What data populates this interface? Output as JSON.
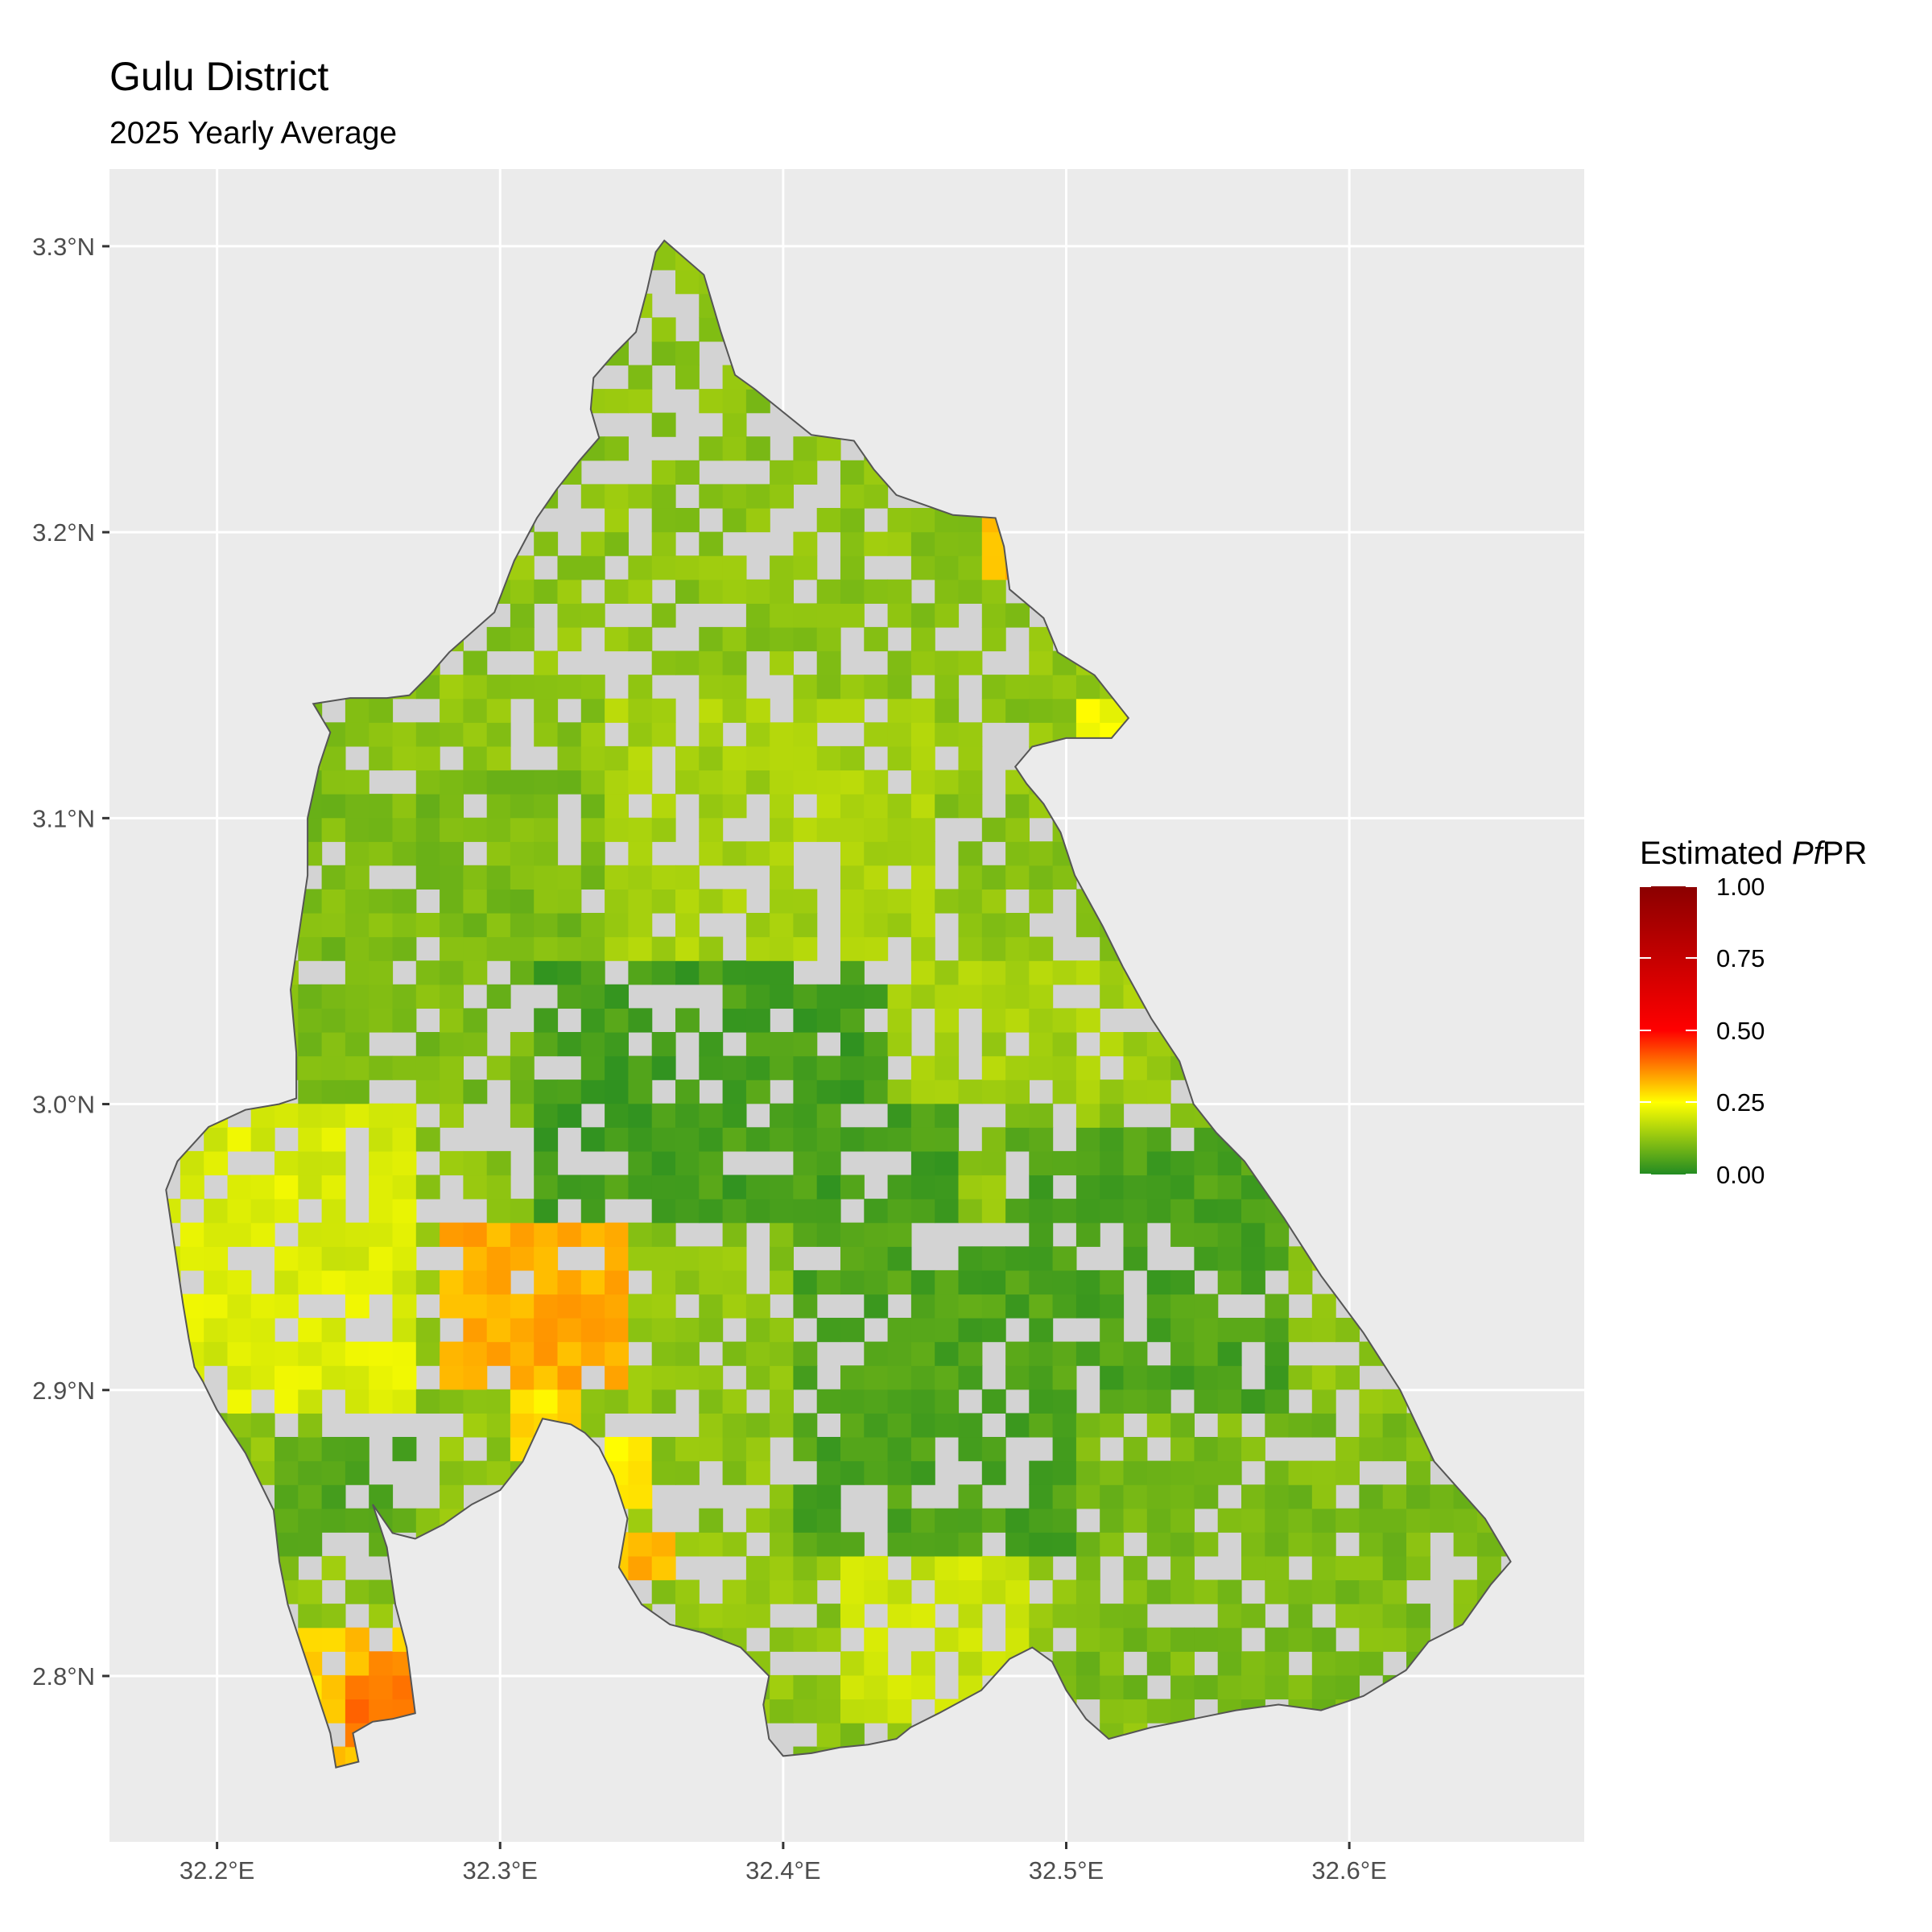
{
  "title": "Gulu District",
  "subtitle": "2025 Yearly Average",
  "legend": {
    "title_prefix": "Estimated ",
    "title_italic": "Pf",
    "title_suffix": "PR",
    "labels": [
      "1.00",
      "0.75",
      "0.50",
      "0.25",
      "0.00"
    ],
    "colors": {
      "low": "#228B22",
      "mid": "#FFFF00",
      "midhigh": "#FF0000",
      "high": "#8B0000"
    },
    "range": [
      0,
      1
    ]
  },
  "colors": {
    "panel": "#EBEBEB",
    "grid": "#FFFFFF",
    "na": "#D3D3D3",
    "outline": "#555555"
  },
  "chart_data": {
    "type": "heatmap",
    "title": "Gulu District",
    "subtitle": "2025 Yearly Average",
    "fill_label": "Estimated PfPR",
    "x_ticks": [
      {
        "value": 32.2,
        "label": "32.2°E"
      },
      {
        "value": 32.3,
        "label": "32.3°E"
      },
      {
        "value": 32.4,
        "label": "32.4°E"
      },
      {
        "value": 32.5,
        "label": "32.5°E"
      },
      {
        "value": 32.6,
        "label": "32.6°E"
      }
    ],
    "y_ticks": [
      {
        "value": 3.3,
        "label": "3.3°N"
      },
      {
        "value": 3.2,
        "label": "3.2°N"
      },
      {
        "value": 3.1,
        "label": "3.1°N"
      },
      {
        "value": 3.0,
        "label": "3.0°N"
      },
      {
        "value": 2.9,
        "label": "2.9°N"
      },
      {
        "value": 2.8,
        "label": "2.8°N"
      }
    ],
    "xlim": [
      32.162,
      32.683
    ],
    "ylim": [
      2.742,
      3.327
    ],
    "grid": true,
    "boundary": [
      [
        32.358,
        3.302
      ],
      [
        32.372,
        3.29
      ],
      [
        32.378,
        3.27
      ],
      [
        32.383,
        3.255
      ],
      [
        32.39,
        3.25
      ],
      [
        32.41,
        3.234
      ],
      [
        32.425,
        3.232
      ],
      [
        32.432,
        3.222
      ],
      [
        32.44,
        3.213
      ],
      [
        32.46,
        3.206
      ],
      [
        32.475,
        3.205
      ],
      [
        32.478,
        3.195
      ],
      [
        32.48,
        3.18
      ],
      [
        32.492,
        3.17
      ],
      [
        32.497,
        3.158
      ],
      [
        32.51,
        3.15
      ],
      [
        32.522,
        3.135
      ],
      [
        32.516,
        3.128
      ],
      [
        32.5,
        3.128
      ],
      [
        32.488,
        3.125
      ],
      [
        32.482,
        3.118
      ],
      [
        32.486,
        3.112
      ],
      [
        32.492,
        3.105
      ],
      [
        32.498,
        3.095
      ],
      [
        32.503,
        3.08
      ],
      [
        32.513,
        3.062
      ],
      [
        32.52,
        3.048
      ],
      [
        32.53,
        3.03
      ],
      [
        32.54,
        3.015
      ],
      [
        32.545,
        3.0
      ],
      [
        32.553,
        2.99
      ],
      [
        32.563,
        2.98
      ],
      [
        32.577,
        2.96
      ],
      [
        32.59,
        2.94
      ],
      [
        32.605,
        2.92
      ],
      [
        32.618,
        2.9
      ],
      [
        32.63,
        2.875
      ],
      [
        32.648,
        2.855
      ],
      [
        32.657,
        2.84
      ],
      [
        32.65,
        2.832
      ],
      [
        32.64,
        2.818
      ],
      [
        32.628,
        2.812
      ],
      [
        32.62,
        2.802
      ],
      [
        32.605,
        2.793
      ],
      [
        32.59,
        2.788
      ],
      [
        32.575,
        2.79
      ],
      [
        32.56,
        2.788
      ],
      [
        32.545,
        2.785
      ],
      [
        32.53,
        2.782
      ],
      [
        32.515,
        2.778
      ],
      [
        32.507,
        2.785
      ],
      [
        32.5,
        2.795
      ],
      [
        32.495,
        2.805
      ],
      [
        32.488,
        2.81
      ],
      [
        32.48,
        2.806
      ],
      [
        32.47,
        2.795
      ],
      [
        32.455,
        2.787
      ],
      [
        32.445,
        2.782
      ],
      [
        32.44,
        2.778
      ],
      [
        32.43,
        2.776
      ],
      [
        32.42,
        2.775
      ],
      [
        32.41,
        2.773
      ],
      [
        32.4,
        2.772
      ],
      [
        32.395,
        2.778
      ],
      [
        32.393,
        2.79
      ],
      [
        32.395,
        2.8
      ],
      [
        32.385,
        2.81
      ],
      [
        32.372,
        2.815
      ],
      [
        32.36,
        2.818
      ],
      [
        32.35,
        2.825
      ],
      [
        32.342,
        2.838
      ],
      [
        32.345,
        2.855
      ],
      [
        32.34,
        2.87
      ],
      [
        32.335,
        2.88
      ],
      [
        32.33,
        2.885
      ],
      [
        32.325,
        2.888
      ],
      [
        32.315,
        2.89
      ],
      [
        32.308,
        2.875
      ],
      [
        32.3,
        2.865
      ],
      [
        32.29,
        2.86
      ],
      [
        32.28,
        2.853
      ],
      [
        32.27,
        2.848
      ],
      [
        32.262,
        2.85
      ],
      [
        32.255,
        2.86
      ],
      [
        32.26,
        2.845
      ],
      [
        32.263,
        2.825
      ],
      [
        32.267,
        2.81
      ],
      [
        32.27,
        2.787
      ],
      [
        32.262,
        2.785
      ],
      [
        32.255,
        2.784
      ],
      [
        32.248,
        2.78
      ],
      [
        32.25,
        2.77
      ],
      [
        32.242,
        2.768
      ],
      [
        32.24,
        2.78
      ],
      [
        32.235,
        2.795
      ],
      [
        32.23,
        2.81
      ],
      [
        32.225,
        2.825
      ],
      [
        32.222,
        2.84
      ],
      [
        32.22,
        2.858
      ],
      [
        32.21,
        2.878
      ],
      [
        32.2,
        2.893
      ],
      [
        32.195,
        2.903
      ],
      [
        32.192,
        2.908
      ],
      [
        32.19,
        2.918
      ],
      [
        32.188,
        2.93
      ],
      [
        32.185,
        2.95
      ],
      [
        32.182,
        2.97
      ],
      [
        32.186,
        2.98
      ],
      [
        32.197,
        2.992
      ],
      [
        32.21,
        2.998
      ],
      [
        32.222,
        3.0
      ],
      [
        32.228,
        3.002
      ],
      [
        32.228,
        3.018
      ],
      [
        32.226,
        3.04
      ],
      [
        32.229,
        3.06
      ],
      [
        32.232,
        3.08
      ],
      [
        32.232,
        3.1
      ],
      [
        32.236,
        3.118
      ],
      [
        32.24,
        3.13
      ],
      [
        32.234,
        3.14
      ],
      [
        32.247,
        3.142
      ],
      [
        32.26,
        3.142
      ],
      [
        32.268,
        3.143
      ],
      [
        32.275,
        3.15
      ],
      [
        32.282,
        3.158
      ],
      [
        32.29,
        3.165
      ],
      [
        32.298,
        3.172
      ],
      [
        32.305,
        3.19
      ],
      [
        32.313,
        3.205
      ],
      [
        32.32,
        3.215
      ],
      [
        32.328,
        3.225
      ],
      [
        32.335,
        3.233
      ],
      [
        32.332,
        3.243
      ],
      [
        32.333,
        3.254
      ],
      [
        32.34,
        3.262
      ],
      [
        32.348,
        3.27
      ],
      [
        32.352,
        3.285
      ],
      [
        32.355,
        3.298
      ],
      [
        32.358,
        3.302
      ]
    ],
    "raster": {
      "cell_size_deg": 0.00833,
      "base_value": 0.12,
      "gap_fraction": 0.22,
      "regions": [
        {
          "name": "north-west",
          "lon": [
            32.23,
            32.36
          ],
          "lat": [
            3.0,
            3.12
          ],
          "value": 0.1
        },
        {
          "name": "central-north",
          "lon": [
            32.34,
            32.45
          ],
          "lat": [
            3.05,
            3.14
          ],
          "value": 0.15
        },
        {
          "name": "central-low",
          "lon": [
            32.31,
            32.46
          ],
          "lat": [
            2.96,
            3.05
          ],
          "value": 0.04
        },
        {
          "name": "center-south-low",
          "lon": [
            32.4,
            32.56
          ],
          "lat": [
            2.84,
            2.96
          ],
          "value": 0.05
        },
        {
          "name": "east-mid",
          "lon": [
            32.48,
            32.58
          ],
          "lat": [
            2.89,
            2.99
          ],
          "value": 0.05
        },
        {
          "name": "east-north",
          "lon": [
            32.44,
            32.53
          ],
          "lat": [
            3.0,
            3.05
          ],
          "value": 0.15
        },
        {
          "name": "south-central-yellow",
          "lon": [
            32.42,
            32.49
          ],
          "lat": [
            2.78,
            2.84
          ],
          "value": 0.19
        },
        {
          "name": "south-east",
          "lon": [
            32.5,
            32.65
          ],
          "lat": [
            2.78,
            2.89
          ],
          "value": 0.1
        },
        {
          "name": "west-yellow",
          "lon": [
            32.18,
            32.27
          ],
          "lat": [
            2.89,
            3.0
          ],
          "value": 0.21
        },
        {
          "name": "west-hotspot",
          "lon": [
            32.275,
            32.345
          ],
          "lat": [
            2.9,
            2.96
          ],
          "value": 0.33
        },
        {
          "name": "south-west-strip",
          "lon": [
            32.22,
            32.27
          ],
          "lat": [
            2.84,
            2.88
          ],
          "value": 0.06
        },
        {
          "name": "south-west-tip",
          "lon": [
            32.23,
            32.27
          ],
          "lat": [
            2.77,
            2.82
          ],
          "value": 0.3
        }
      ],
      "hotspots": [
        {
          "lon": 32.485,
          "lat": 3.195,
          "value": 0.32
        },
        {
          "lon": 32.475,
          "lat": 3.222,
          "value": 0.24
        },
        {
          "lon": 32.518,
          "lat": 3.131,
          "value": 0.24
        },
        {
          "lon": 32.35,
          "lat": 2.842,
          "value": 0.32
        },
        {
          "lon": 32.345,
          "lat": 2.872,
          "value": 0.26
        },
        {
          "lon": 32.315,
          "lat": 2.888,
          "value": 0.28
        },
        {
          "lon": 32.255,
          "lat": 2.79,
          "value": 0.4
        },
        {
          "lon": 32.265,
          "lat": 2.795,
          "value": 0.38
        }
      ]
    }
  }
}
